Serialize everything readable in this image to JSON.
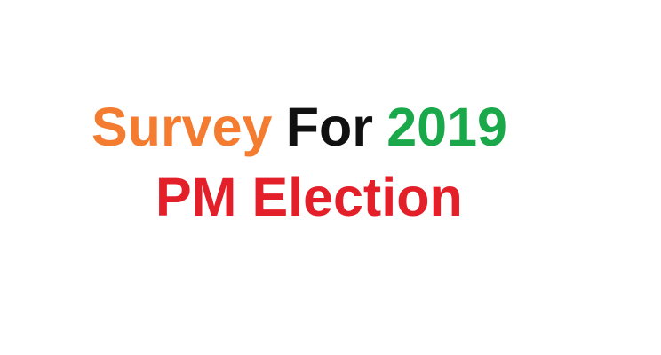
{
  "headline": {
    "line1": {
      "word1": {
        "text": "Survey",
        "color": "#f47c30"
      },
      "word2": {
        "text": "For",
        "color": "#111111"
      },
      "word3": {
        "text": "2019",
        "color": "#1aa84a"
      }
    },
    "line2": {
      "text": "PM Election",
      "color": "#e3202a"
    }
  }
}
